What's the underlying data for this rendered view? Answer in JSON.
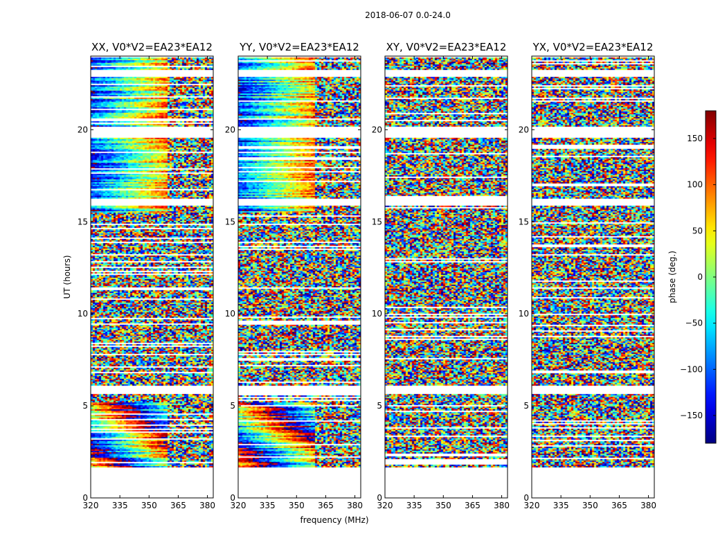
{
  "figure": {
    "suptitle": "2018-06-07 0.0-24.0"
  },
  "chart_data": {
    "type": "heatmap",
    "title": "2018-06-07 0.0-24.0",
    "xlabel": "frequency (MHz)",
    "ylabel": "UT (hours)",
    "xlim": [
      320,
      383
    ],
    "ylim": [
      0,
      24
    ],
    "xticks": [
      320,
      335,
      350,
      365,
      380
    ],
    "yticks": [
      0,
      5,
      10,
      15,
      20
    ],
    "colorbar": {
      "label": "phase (deg.)",
      "range": [
        -180,
        180
      ],
      "ticks": [
        150,
        100,
        50,
        0,
        -50,
        -100,
        -150
      ],
      "tick_labels": [
        "150",
        "100",
        "50",
        "0",
        "−50",
        "−100",
        "−150"
      ],
      "colormap": "jet"
    },
    "panels": [
      {
        "name": "XX",
        "title": "XX, V0*V2=EA23*EA12",
        "coherent": true
      },
      {
        "name": "YY",
        "title": "YY, V0*V2=EA23*EA12",
        "coherent": true
      },
      {
        "name": "XY",
        "title": "XY, V0*V2=EA23*EA12",
        "coherent": false
      },
      {
        "name": "YX",
        "title": "YX, V0*V2=EA23*EA12",
        "coherent": false
      }
    ],
    "data_rows_ut": [
      1.7,
      23.95
    ],
    "flagged_ut_intervals": [
      [
        0,
        1.7
      ],
      [
        5.7,
        6.1
      ],
      [
        15.9,
        16.3
      ],
      [
        19.6,
        20.2
      ],
      [
        22.9,
        23.3
      ]
    ]
  }
}
